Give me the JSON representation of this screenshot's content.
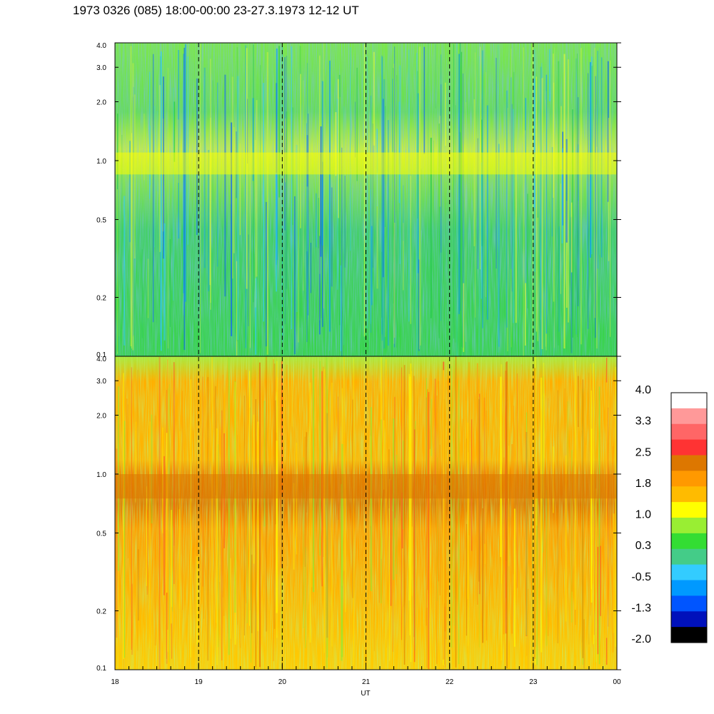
{
  "title": "1973 0326 (085) 18:00-00:00 23-27.3.1973  12-12 UT",
  "chart_data": {
    "type": "heatmap",
    "xlabel": "UT",
    "x_tick_labels": [
      "18",
      "19",
      "20",
      "21",
      "22",
      "23",
      "00"
    ],
    "xlim": [
      18,
      24
    ],
    "y_scale": "log",
    "y_tick_labels": [
      "0.1",
      "0.2",
      "0.5",
      "1.0",
      "2.0",
      "3.0",
      "4.0"
    ],
    "ylim": [
      0.1,
      4.0
    ],
    "dashed_lines_x": [
      19,
      20,
      21,
      22,
      23
    ],
    "panels": [
      {
        "panel": "top",
        "y_tick_labels": [
          "0.1",
          "0.2",
          "0.5",
          "1.0",
          "2.0",
          "3.0",
          "4.0"
        ],
        "dominant_colors": [
          "#33dd33",
          "#44cc88",
          "#88ee33",
          "#33ccff"
        ],
        "band": {
          "freq_start": 0.85,
          "freq_end": 1.1,
          "color": "#ffff00",
          "note": ""
        }
      },
      {
        "panel": "bottom",
        "y_tick_labels": [
          "0.1",
          "0.2",
          "0.5",
          "1.0",
          "2.0",
          "3.0",
          "4.0"
        ],
        "dominant_colors": [
          "#ffbb00",
          "#ff9900",
          "#ffff00",
          "#88ee33"
        ],
        "band": {
          "freq_start": 0.75,
          "freq_end": 1.0,
          "color": "#dd7700",
          "note": ""
        }
      }
    ],
    "colorbar": {
      "labels": [
        "4.0",
        "3.3",
        "2.5",
        "1.8",
        "1.0",
        "0.3",
        "-0.5",
        "-1.3",
        "-2.0"
      ],
      "colors": [
        "#ffffff",
        "#ff9999",
        "#ff6666",
        "#ff3333",
        "#dd7700",
        "#ff9900",
        "#ffbb00",
        "#ffff00",
        "#99ee33",
        "#33dd33",
        "#44cc88",
        "#33ccff",
        "#0099ff",
        "#0055ff",
        "#0011bb",
        "#000000"
      ]
    }
  }
}
